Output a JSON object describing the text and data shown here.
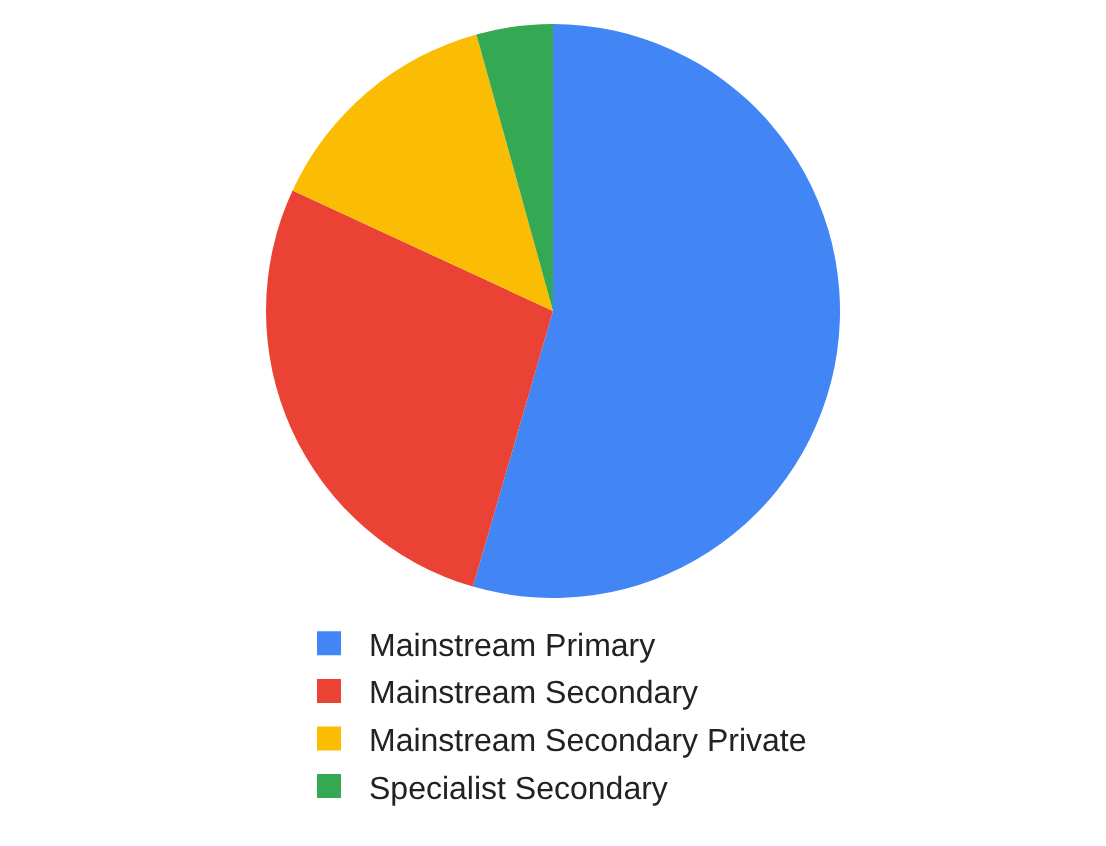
{
  "chart_data": {
    "type": "pie",
    "categories": [
      "Mainstream Primary",
      "Mainstream Secondary",
      "Mainstream Secondary Private",
      "Specialist Secondary"
    ],
    "values": [
      54.5,
      27.4,
      13.8,
      4.3
    ],
    "colors": [
      "#4285f4",
      "#ea4335",
      "#fbbc04",
      "#34a853"
    ],
    "legend": "bottom"
  }
}
